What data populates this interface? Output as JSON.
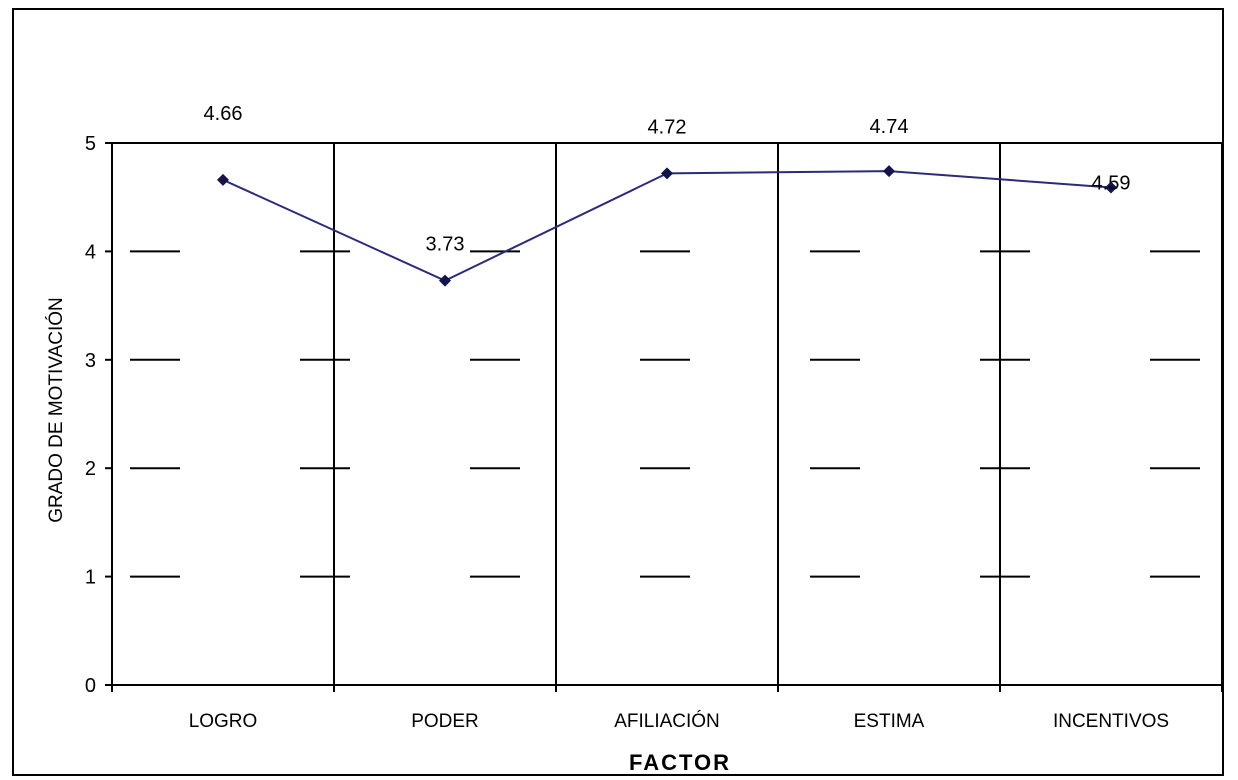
{
  "chart_data": {
    "type": "line",
    "categories": [
      "LOGRO",
      "PODER",
      "AFILIACIÓN",
      "ESTIMA",
      "INCENTIVOS"
    ],
    "series": [
      {
        "values": [
          4.66,
          3.73,
          4.72,
          4.74,
          4.59
        ]
      }
    ],
    "data_labels": [
      "4.66",
      "3.73",
      "4.72",
      "4.74",
      "4.59"
    ],
    "xlabel": "FACTOR",
    "ylabel": "GRADO DE MOTIVACIÓN",
    "ylim": [
      0,
      5
    ],
    "yticks": [
      0,
      1,
      2,
      3,
      4,
      5
    ],
    "grid": true,
    "line_color": "#2b2b7a",
    "marker_color": "#14144a"
  }
}
